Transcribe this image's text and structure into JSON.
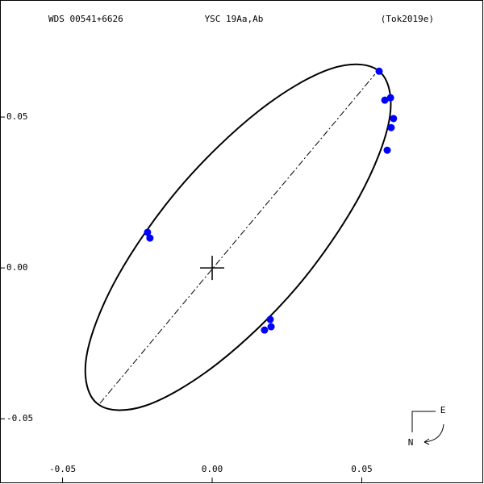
{
  "chart_data": {
    "type": "orbit",
    "title_left": "WDS 00541+6626",
    "title_center": "YSC  19Aa,Ab",
    "title_right": "(Tok2019e)",
    "xlim": [
      -0.0709,
      0.0903
    ],
    "ylim": [
      -0.0711,
      0.0888
    ],
    "xticks": [
      -0.05,
      {
        "value": 0,
        "label": "0.00"
      },
      0.05
    ],
    "yticks": [
      -0.05,
      {
        "value": 0,
        "label": "0.00"
      },
      0.05
    ],
    "points": {
      "color": "#0000ff",
      "x": [
        0.0558,
        0.0577,
        0.0596,
        0.0606,
        0.0598,
        0.0585,
        -0.0216,
        -0.0208,
        0.0194,
        0.0197,
        0.0175
      ],
      "y": [
        0.0652,
        0.0556,
        0.0564,
        0.0495,
        0.0465,
        0.039,
        0.0118,
        0.0099,
        -0.0171,
        -0.0195,
        -0.0206
      ]
    },
    "orbit": {
      "color": "#000000",
      "x": [
        0.0558,
        0.0593,
        0.0491,
        0.0283,
        0.0019,
        -0.0224,
        -0.0385,
        -0.042,
        -0.0318,
        -0.0108,
        0.0154,
        0.0396
      ],
      "y": [
        0.0652,
        0.0497,
        0.0235,
        -0.0064,
        -0.0316,
        -0.0457,
        -0.0449,
        -0.0294,
        -0.0032,
        0.0267,
        0.0519,
        0.066
      ]
    },
    "line_of_nodes": {
      "x": [
        -0.0375,
        0.0544
      ],
      "y": [
        -0.0449,
        0.0642
      ]
    },
    "compass": {
      "east": "E",
      "north": "N"
    }
  }
}
